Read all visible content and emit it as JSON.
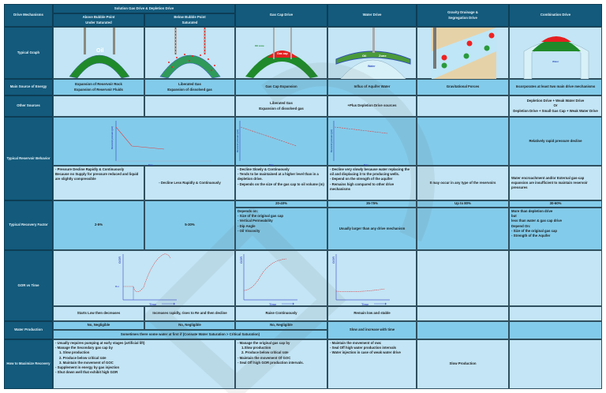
{
  "header": {
    "corner": "Drive Mechanisms",
    "solution_group": "Solution Gas Drive & Depletion Drive",
    "columns": [
      "Above Bubble Point",
      "Under Saturated",
      "Below Bubble Point",
      "Saturated",
      "Gas Cap Drive",
      "Water Drive",
      "Gravity Drainage &",
      "Segregation Drive",
      "Combination Drive"
    ]
  },
  "row_labels": {
    "graph": "Typical Graph",
    "energy": "Main Source of Energy",
    "other": "Other Sources",
    "behavior": "Typical Reservoir Behavior",
    "recovery": "Typical Recovery Factor",
    "gor": "GOR vs Time",
    "water": "Water Production",
    "maximize": "How to Maximize Recovery"
  },
  "graph_labels": {
    "oil": "Oil",
    "gas_cap": "Gas cap",
    "oil_zone": "Oil zone",
    "zone": "Zone",
    "water": "Water",
    "gas_cap2": "Gas cap",
    "oil_zone2": "Oil zone",
    "water2": "Water"
  },
  "energy": [
    "Expansion of Reservoir Rock",
    "Expansion of Reservoir Fluids",
    "Liberated Gas",
    "Expansion of dissolved gas",
    "Gas Cap Expansion",
    "Influx of Aquifer Water",
    "Gravitational Forces",
    "Incorporates at least two main drive mechanisms"
  ],
  "other": {
    "gas_cap": [
      "Liberated Gas",
      "Expansion of dissolved gas"
    ],
    "water": "+Plus Depletion Drive sources",
    "combination": [
      "Depletion Drive + Weak Water Drive",
      "Or",
      "Depletion Drive + Small Gas Cap + Weak Water Drive"
    ]
  },
  "behavior_axes": {
    "y": "Reservoir pressure (psi)",
    "x": "Time"
  },
  "behavior": {
    "combination_graph": "Relatively rapid pressure decline",
    "above": [
      "- Pressure Decline Rapidly & Continuously",
      "Because no Supply for pressure reduced and liquid are slightly compressible"
    ],
    "below": "- Decline Less Rapidly & Continuously",
    "gas_cap": [
      "- Decline Slowly & Continuously",
      "- Tends to be maintained at a higher level than in a depletion drive.",
      "- Depends on the size of the gas cap to oil volume (m)"
    ],
    "water": [
      "- Decline very slowly because water replacing the oil and displacing it to the producing wells.",
      "- Depend on the strength of the aquifer",
      "- Remains high compared to other drive mechanisms"
    ],
    "gravity": "It may occur in any type of the reservoirs",
    "combination": "Water encroachment and/or External gas-cap expansion are insufficient to maintain reservoir pressures"
  },
  "recovery": {
    "above": "2-5%",
    "below": "5-30%",
    "gas_cap": "20-40%",
    "water": "35-75%",
    "gravity": "Up to 80%",
    "combination": "30-60%",
    "gas_cap_notes": [
      "Depends on:",
      "- Size of the original gas cap",
      "- Vertical Permeability",
      "- Dip Angle",
      "- Oil Viscosity"
    ],
    "water_notes": "Usually larger than any drive mechanism",
    "combination_notes": [
      "More than depletion drive",
      "but",
      "less than water & gas cap drive",
      "Depend On:",
      "- Size of the original gas cap",
      "- Strength of the Aquifer"
    ]
  },
  "gor_axes": {
    "y": "GOR",
    "x": "Time",
    "rsi": "Rsi"
  },
  "gor": [
    "Starts Low then decreases",
    "Increases rapidly, rises to Re and then decline",
    "Raise Continuously",
    "Remain low and stable"
  ],
  "water": {
    "above": "No, Negligible",
    "below": "No, Negligible",
    "gas_cap": "No, Negligible",
    "note": "Sometimes there some water at first if (Connate Water Saturation > Critical Saturation)",
    "water_drive": "Slow and increase with time"
  },
  "maximize": {
    "solution": [
      "- Usually requires pumping at early stages (artificial lift)",
      "- Manage the Secondary gas cap by",
      "1. Slow production",
      "2. Produce below critical rate",
      "3. Maintain the movement of GOC",
      "- Supplement in energy by gas injection",
      "- Shut down well that exhibit high GOR"
    ],
    "gas_cap": [
      "- Manage the original gas cap by",
      "1.Slow production",
      "2. Produce below critical rate",
      "- Maintain the movement Of GOC",
      "- Seal Off high GOR production intervals."
    ],
    "water": [
      "- Maintain the movement of owc",
      "- Seal Off high water production intervals",
      "- Water injection in case of weak water drive"
    ],
    "gravity": "Slow Production"
  },
  "colors": {
    "header": "#135a7c",
    "light": "#c3e5f5",
    "medium": "#83cbea",
    "oil": "#1f8a2a",
    "gas": "#e52020",
    "curve": "#e04040",
    "axis": "#3040c0"
  }
}
